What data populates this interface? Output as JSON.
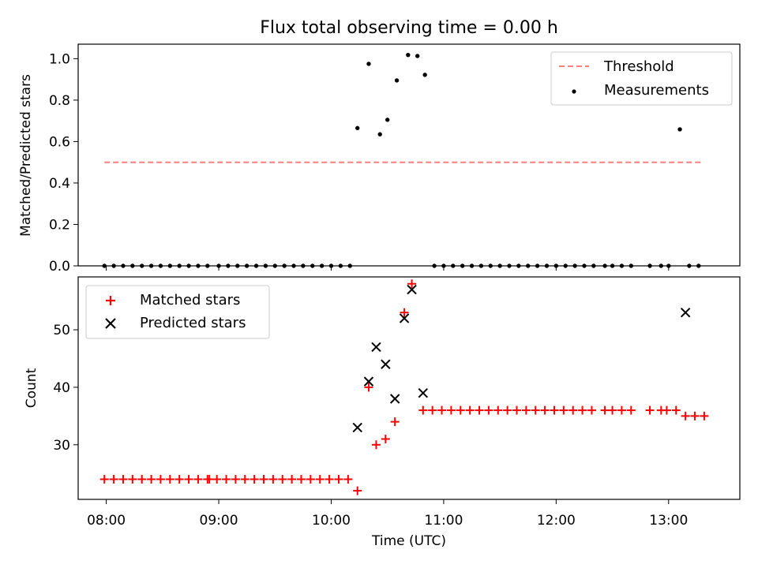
{
  "title": "Flux total observing time = 0.00 h",
  "colors": {
    "threshold": "#ff7f7f",
    "matched": "#ff0000",
    "predicted": "#000000",
    "measurement": "#000000"
  },
  "chart_data": [
    {
      "type": "scatter",
      "ylabel": "Matched/Predicted stars",
      "ylim": [
        0,
        1.07
      ],
      "yticks": [
        0.0,
        0.2,
        0.4,
        0.6,
        0.8,
        1.0
      ],
      "ytick_labels": [
        "0.0",
        "0.2",
        "0.4",
        "0.6",
        "0.8",
        "1.0"
      ],
      "xlim": [
        "07:45",
        "13:38"
      ],
      "legend_position": "upper right",
      "legend": [
        {
          "label": "Threshold",
          "marker": "dashed-line"
        },
        {
          "label": "Measurements",
          "marker": "dot"
        }
      ],
      "threshold": {
        "name": "Threshold",
        "value": 0.5,
        "x_range": [
          "07:59",
          "13:18"
        ]
      },
      "series": [
        {
          "name": "Measurements",
          "x": [
            "07:59",
            "08:04",
            "08:09",
            "08:14",
            "08:19",
            "08:24",
            "08:29",
            "08:34",
            "08:39",
            "08:44",
            "08:49",
            "08:54",
            "09:00",
            "09:05",
            "09:10",
            "09:15",
            "09:20",
            "09:25",
            "09:30",
            "09:35",
            "09:40",
            "09:45",
            "09:50",
            "09:55",
            "10:00",
            "10:05",
            "10:10",
            "10:14",
            "10:20",
            "10:26",
            "10:30",
            "10:35",
            "10:41",
            "10:46",
            "10:50",
            "10:55",
            "11:00",
            "11:05",
            "11:10",
            "11:15",
            "11:20",
            "11:25",
            "11:30",
            "11:35",
            "11:40",
            "11:45",
            "11:50",
            "11:55",
            "12:00",
            "12:05",
            "12:10",
            "12:15",
            "12:20",
            "12:26",
            "12:30",
            "12:35",
            "12:40",
            "12:50",
            "12:56",
            "13:00",
            "13:06",
            "13:11",
            "13:16"
          ],
          "y": [
            0,
            0,
            0,
            0,
            0,
            0,
            0,
            0,
            0,
            0,
            0,
            0,
            0,
            0,
            0,
            0,
            0,
            0,
            0,
            0,
            0,
            0,
            0,
            0,
            0,
            0,
            0,
            0.665,
            0.975,
            0.635,
            0.705,
            0.895,
            1.018,
            1.013,
            0.922,
            0,
            0,
            0,
            0,
            0,
            0,
            0,
            0,
            0,
            0,
            0,
            0,
            0,
            0,
            0,
            0,
            0,
            0,
            0,
            0,
            0,
            0,
            0,
            0,
            0,
            0.659,
            0,
            0
          ]
        }
      ]
    },
    {
      "type": "scatter",
      "xlabel": "Time (UTC)",
      "ylabel": "Count",
      "ylim": [
        20.5,
        59.2
      ],
      "yticks": [
        30,
        40,
        50
      ],
      "ytick_labels": [
        "30",
        "40",
        "50"
      ],
      "xlim": [
        "07:45",
        "13:38"
      ],
      "xticks": [
        "08:00",
        "09:00",
        "10:00",
        "11:00",
        "12:00",
        "13:00"
      ],
      "legend_position": "upper left",
      "legend": [
        {
          "label": "Matched stars",
          "marker": "plus"
        },
        {
          "label": "Predicted stars",
          "marker": "x"
        }
      ],
      "series": [
        {
          "name": "Matched stars",
          "x": [
            "07:59",
            "08:04",
            "08:09",
            "08:14",
            "08:19",
            "08:24",
            "08:29",
            "08:34",
            "08:39",
            "08:44",
            "08:49",
            "08:54",
            "08:55",
            "08:59",
            "09:04",
            "09:09",
            "09:14",
            "09:19",
            "09:24",
            "09:29",
            "09:34",
            "09:39",
            "09:44",
            "09:49",
            "09:54",
            "09:59",
            "10:04",
            "10:09",
            "10:14",
            "10:20",
            "10:24",
            "10:29",
            "10:34",
            "10:39",
            "10:43",
            "10:49",
            "10:54",
            "10:59",
            "11:04",
            "11:09",
            "11:14",
            "11:19",
            "11:24",
            "11:29",
            "11:34",
            "11:39",
            "11:44",
            "11:49",
            "11:54",
            "11:59",
            "12:04",
            "12:09",
            "12:14",
            "12:19",
            "12:26",
            "12:30",
            "12:35",
            "12:40",
            "12:50",
            "12:56",
            "12:59",
            "13:04",
            "13:09",
            "13:14",
            "13:19"
          ],
          "y": [
            24,
            24,
            24,
            24,
            24,
            24,
            24,
            24,
            24,
            24,
            24,
            24,
            24,
            24,
            24,
            24,
            24,
            24,
            24,
            24,
            24,
            24,
            24,
            24,
            24,
            24,
            24,
            24,
            22,
            40,
            30,
            31,
            34,
            53,
            58,
            36,
            36,
            36,
            36,
            36,
            36,
            36,
            36,
            36,
            36,
            36,
            36,
            36,
            36,
            36,
            36,
            36,
            36,
            36,
            36,
            36,
            36,
            36,
            36,
            36,
            36,
            36,
            35,
            35,
            35
          ]
        },
        {
          "name": "Predicted stars",
          "x": [
            "10:14",
            "10:20",
            "10:24",
            "10:29",
            "10:34",
            "10:39",
            "10:43",
            "10:49",
            "13:09"
          ],
          "y": [
            33,
            41,
            47,
            44,
            38,
            52,
            57,
            39,
            53
          ]
        }
      ]
    }
  ],
  "xaxis": {
    "label": "Time (UTC)",
    "tick_labels": [
      "08:00",
      "09:00",
      "10:00",
      "11:00",
      "12:00",
      "13:00"
    ]
  }
}
